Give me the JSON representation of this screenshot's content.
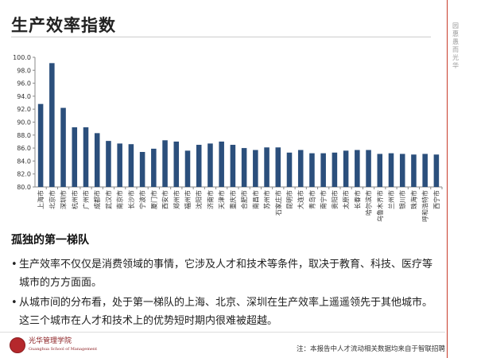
{
  "page": {
    "title": "生产效率指数",
    "side_text": "园惠愚 而光华",
    "section_heading": "孤独的第一梯队",
    "bullet_marker": "•",
    "bullets": [
      {
        "line1": "生产效率不仅仅是消费领域的事情，它涉及人才和技术等条件，取决于教育、科技、医疗等",
        "line2": "城市的方方面面。"
      },
      {
        "line1": "从城市间的分布看，处于第一梯队的上海、北京、深圳在生产效率上遥遥领先于其他城市。",
        "line2": "这三个城市在人才和技术上的优势短时期内很难被超越。"
      }
    ],
    "logo_text": "光华管理学院",
    "logo_sub": "Guanghua School of Management",
    "footnote": "注：本报告中人才流动相关数据均来自于智联招聘"
  },
  "chart_data": {
    "type": "bar",
    "categories": [
      "上海市",
      "北京市",
      "深圳市",
      "杭州市",
      "广州市",
      "成都市",
      "武汉市",
      "南京市",
      "长沙市",
      "宁波市",
      "厦门市",
      "西安市",
      "郑州市",
      "福州市",
      "沈阳市",
      "济南市",
      "天津市",
      "重庆市",
      "合肥市",
      "南昌市",
      "苏州市",
      "石家庄市",
      "昆明市",
      "大连市",
      "青岛市",
      "南宁市",
      "贵阳市",
      "太原市",
      "长春市",
      "哈尔滨市",
      "乌鲁木齐市",
      "兰州市",
      "银川市",
      "珠海市",
      "呼和浩特市",
      "西宁市"
    ],
    "values": [
      92.8,
      99.1,
      92.2,
      89.2,
      89.2,
      88.3,
      87.1,
      86.7,
      86.6,
      85.4,
      85.9,
      87.2,
      87.0,
      85.6,
      86.5,
      86.7,
      87.0,
      86.5,
      86.0,
      85.7,
      86.1,
      86.1,
      85.3,
      85.7,
      85.2,
      85.2,
      85.3,
      85.6,
      85.7,
      85.7,
      85.1,
      85.2,
      85.1,
      85.0,
      85.1,
      85.0
    ],
    "yticks": [
      "80.0",
      "82.0",
      "84.0",
      "86.0",
      "88.0",
      "90.0",
      "92.0",
      "94.0",
      "96.0",
      "98.0",
      "100.0"
    ],
    "ylim": [
      80,
      100
    ],
    "grid": false,
    "bar_color": "#2b4f7c"
  }
}
